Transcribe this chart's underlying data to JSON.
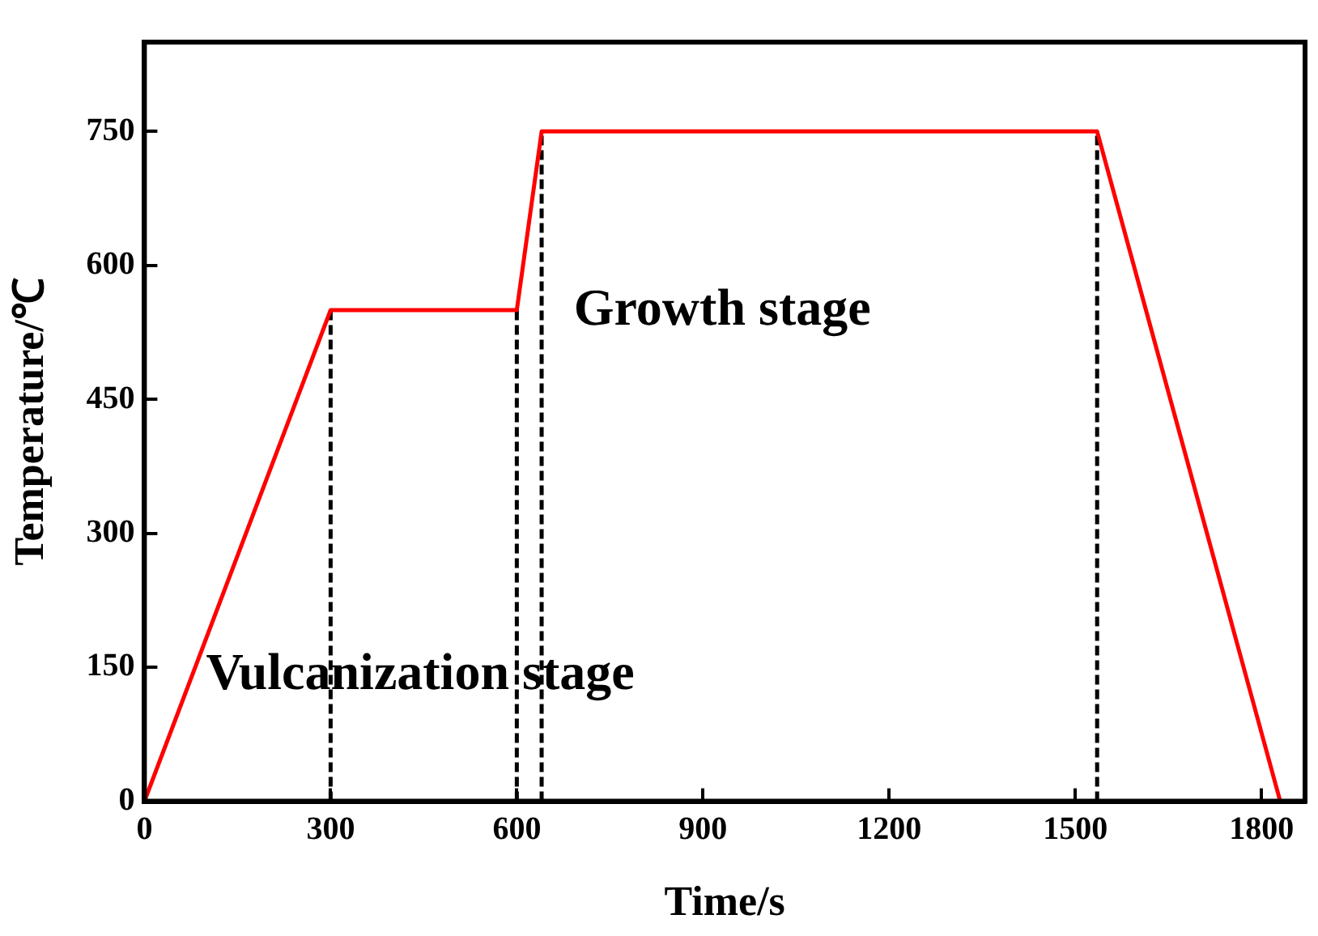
{
  "chart_data": {
    "type": "line",
    "xlabel": "Time/s",
    "ylabel": "Temperature/℃",
    "xlim": [
      0,
      1870
    ],
    "ylim": [
      0,
      850
    ],
    "xticks": [
      0,
      300,
      600,
      900,
      1200,
      1500,
      1800
    ],
    "yticks": [
      0,
      150,
      300,
      450,
      600,
      750
    ],
    "grid": false,
    "legend": false,
    "marker": "none",
    "series": [
      {
        "color": "#ff0000",
        "x": [
          0,
          300,
          600,
          640,
          1535,
          1830
        ],
        "values": [
          0,
          550,
          550,
          750,
          750,
          0
        ]
      },
      {
        "color": "#000000",
        "line_style": "dashed",
        "x": [
          300,
          300
        ],
        "values": [
          0,
          550
        ]
      },
      {
        "color": "#000000",
        "line_style": "dashed",
        "x": [
          600,
          600
        ],
        "values": [
          0,
          550
        ]
      },
      {
        "color": "#000000",
        "line_style": "dashed",
        "x": [
          640,
          640
        ],
        "values": [
          0,
          750
        ]
      },
      {
        "color": "#000000",
        "line_style": "dashed",
        "x": [
          1535,
          1535
        ],
        "values": [
          0,
          750
        ]
      }
    ],
    "annotations": [
      "Growth stage",
      "Vulcanization stage"
    ]
  }
}
